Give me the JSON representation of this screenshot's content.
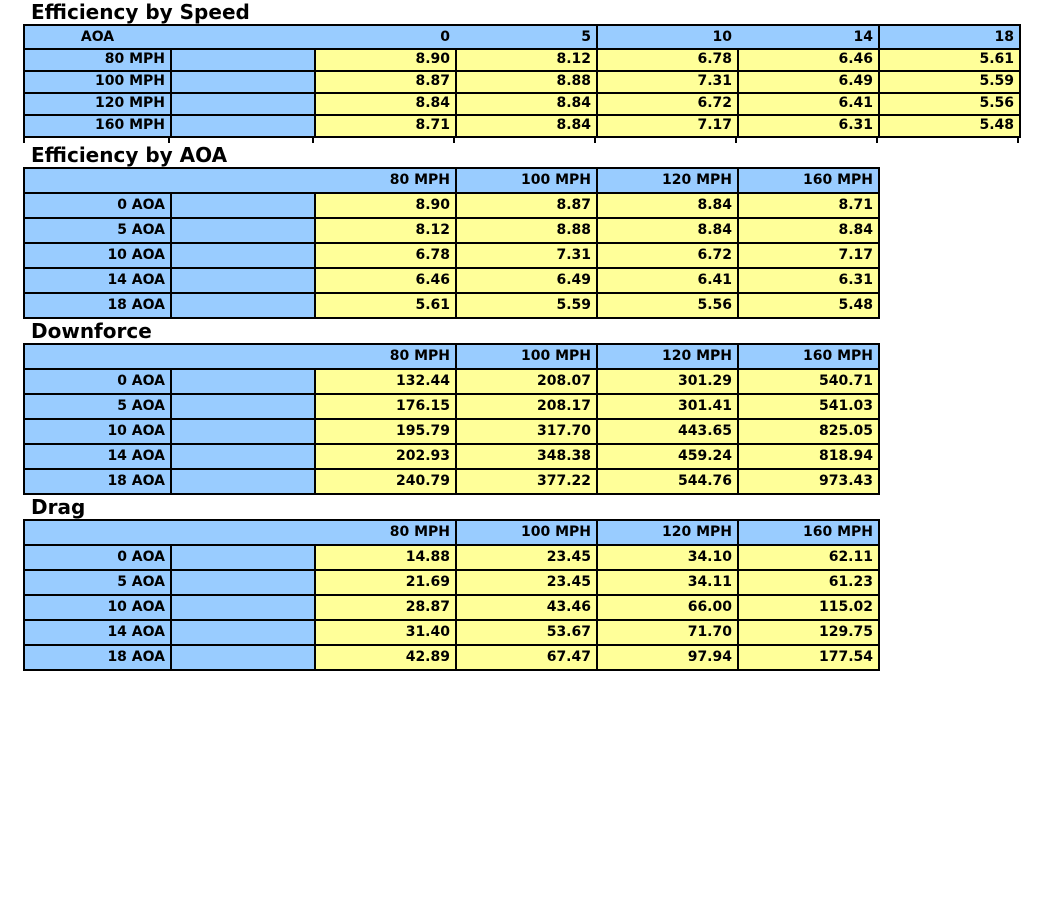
{
  "colors": {
    "header_fill": "#99CCFF",
    "value_fill": "#FFFF99",
    "border": "#000000",
    "text": "#000000",
    "background": "#FFFFFF"
  },
  "tables": [
    {
      "title": "Efficiency by Speed",
      "corner_label": "AOA",
      "col_headers": [
        "0",
        "5",
        "10",
        "14",
        "18"
      ],
      "row_labels": [
        "80 MPH",
        "100 MPH",
        "120 MPH",
        "160 MPH"
      ],
      "rows": [
        [
          "8.90",
          "8.12",
          "6.78",
          "6.46",
          "5.61"
        ],
        [
          "8.87",
          "8.88",
          "7.31",
          "6.49",
          "5.59"
        ],
        [
          "8.84",
          "8.84",
          "6.72",
          "6.41",
          "5.56"
        ],
        [
          "8.71",
          "8.84",
          "7.17",
          "6.31",
          "5.48"
        ]
      ]
    },
    {
      "title": "Efficiency by AOA",
      "corner_label": "",
      "col_headers": [
        "80 MPH",
        "100 MPH",
        "120 MPH",
        "160 MPH"
      ],
      "row_labels": [
        "0 AOA",
        "5 AOA",
        "10 AOA",
        "14 AOA",
        "18 AOA"
      ],
      "rows": [
        [
          "8.90",
          "8.87",
          "8.84",
          "8.71"
        ],
        [
          "8.12",
          "8.88",
          "8.84",
          "8.84"
        ],
        [
          "6.78",
          "7.31",
          "6.72",
          "7.17"
        ],
        [
          "6.46",
          "6.49",
          "6.41",
          "6.31"
        ],
        [
          "5.61",
          "5.59",
          "5.56",
          "5.48"
        ]
      ]
    },
    {
      "title": "Downforce",
      "corner_label": "",
      "col_headers": [
        "80 MPH",
        "100 MPH",
        "120 MPH",
        "160 MPH"
      ],
      "row_labels": [
        "0 AOA",
        "5 AOA",
        "10 AOA",
        "14 AOA",
        "18 AOA"
      ],
      "rows": [
        [
          "132.44",
          "208.07",
          "301.29",
          "540.71"
        ],
        [
          "176.15",
          "208.17",
          "301.41",
          "541.03"
        ],
        [
          "195.79",
          "317.70",
          "443.65",
          "825.05"
        ],
        [
          "202.93",
          "348.38",
          "459.24",
          "818.94"
        ],
        [
          "240.79",
          "377.22",
          "544.76",
          "973.43"
        ]
      ]
    },
    {
      "title": "Drag",
      "corner_label": "",
      "col_headers": [
        "80 MPH",
        "100 MPH",
        "120 MPH",
        "160 MPH"
      ],
      "row_labels": [
        "0 AOA",
        "5 AOA",
        "10 AOA",
        "14 AOA",
        "18 AOA"
      ],
      "rows": [
        [
          "14.88",
          "23.45",
          "34.10",
          "62.11"
        ],
        [
          "21.69",
          "23.45",
          "34.11",
          "61.23"
        ],
        [
          "28.87",
          "43.46",
          "66.00",
          "115.02"
        ],
        [
          "31.40",
          "53.67",
          "71.70",
          "129.75"
        ],
        [
          "42.89",
          "67.47",
          "97.94",
          "177.54"
        ]
      ]
    }
  ]
}
